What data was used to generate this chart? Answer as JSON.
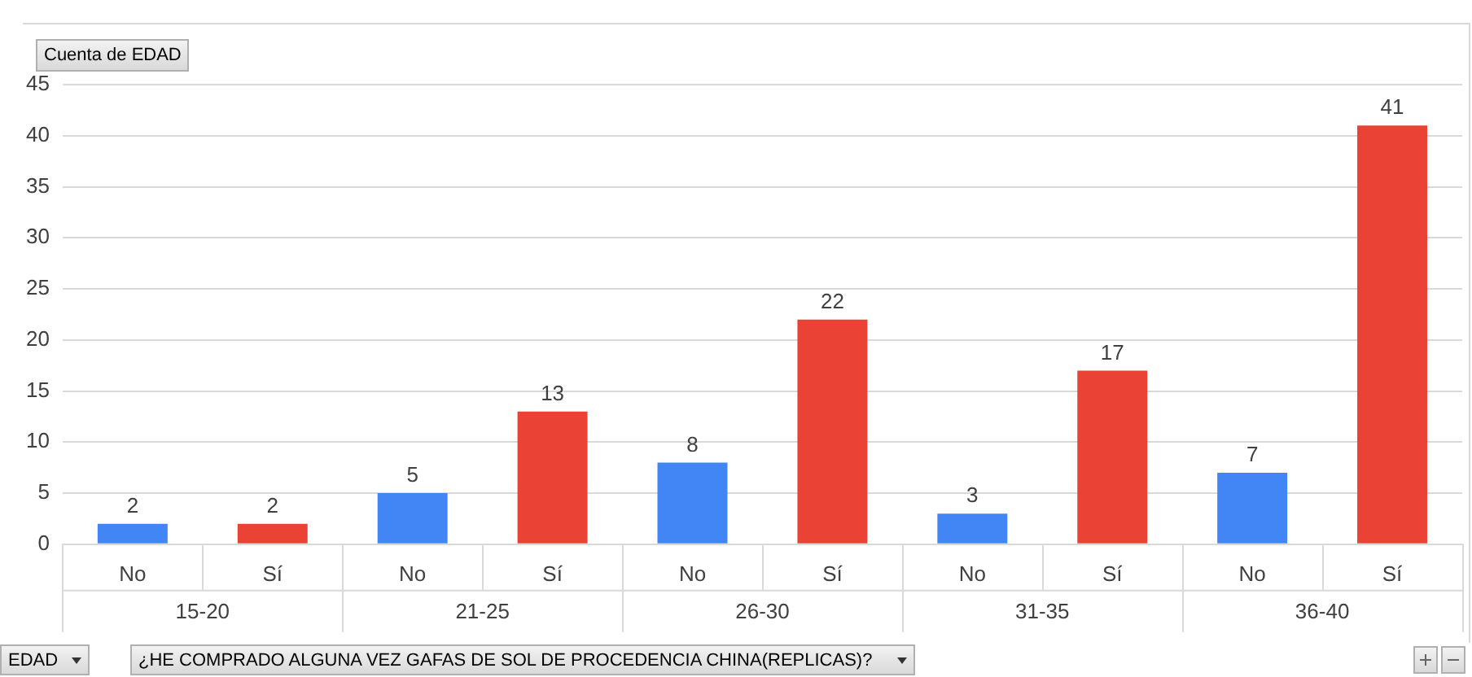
{
  "chart_data": {
    "type": "bar",
    "categories": [
      "No",
      "Sí",
      "No",
      "Sí",
      "No",
      "Sí",
      "No",
      "Sí",
      "No",
      "Sí"
    ],
    "values": [
      2,
      2,
      5,
      13,
      8,
      22,
      3,
      17,
      7,
      41
    ],
    "colors": [
      "#4285f4",
      "#ea4335",
      "#4285f4",
      "#ea4335",
      "#4285f4",
      "#ea4335",
      "#4285f4",
      "#ea4335",
      "#4285f4",
      "#ea4335"
    ],
    "ylim": [
      0,
      45
    ],
    "yticks": [
      0,
      5,
      10,
      15,
      20,
      25,
      30,
      35,
      40,
      45
    ],
    "grid": "y",
    "data_labels": true,
    "annotations": [
      "Cuenta de EDAD",
      "EDAD",
      "¿HE COMPRADO ALGUNA VEZ GAFAS DE SOL DE PROCEDENCIA CHINA(REPLICAS)?",
      "15-20",
      "21-25",
      "26-30",
      "31-35",
      "36-40"
    ]
  }
}
